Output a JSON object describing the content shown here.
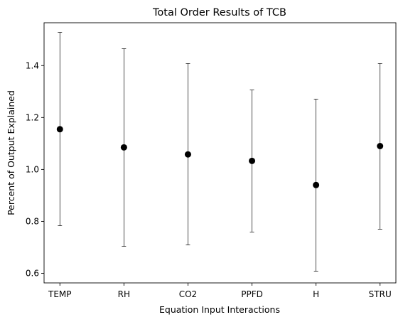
{
  "chart_data": {
    "type": "scatter",
    "title": "Total Order Results of TCB",
    "xlabel": "Equation Input Interactions",
    "ylabel": "Percent of Output Explained",
    "categories": [
      "TEMP",
      "RH",
      "CO2",
      "PPFD",
      "H",
      "STRU"
    ],
    "values": [
      1.155,
      1.085,
      1.058,
      1.033,
      0.94,
      1.09
    ],
    "error_low": [
      0.783,
      0.704,
      0.709,
      0.759,
      0.608,
      0.77
    ],
    "error_high": [
      1.528,
      1.465,
      1.408,
      1.306,
      1.271,
      1.408
    ],
    "ylim": [
      0.563,
      1.565
    ],
    "yticks": [
      "0.6",
      "0.8",
      "1.0",
      "1.2",
      "1.4"
    ],
    "grid": false,
    "marker_color": "#000000"
  }
}
